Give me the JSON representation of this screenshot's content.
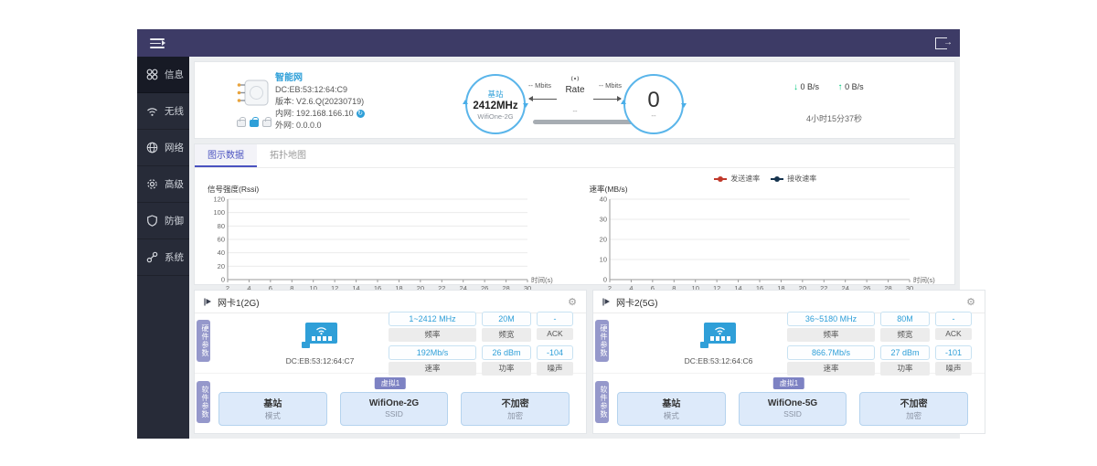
{
  "colors": {
    "topbar": "#3d3b66",
    "sidebar": "#272b38",
    "accent_blue": "#2e9fd8",
    "green": "#00c87d",
    "tab_active": "#4a52c0",
    "vtab_purple": "#9598cb",
    "badge_purple": "#7d82c3",
    "button_blue": "#ddeafa"
  },
  "icons": {
    "menu": "hamburger",
    "logout": "door-arrow",
    "gear": "⚙",
    "down_arrow": "↓",
    "up_arrow": "↑",
    "refresh": "↻"
  },
  "sidebar": {
    "items": [
      {
        "label": "信息",
        "icon": "grid-icon",
        "active": true
      },
      {
        "label": "无线",
        "icon": "wifi-icon",
        "active": false
      },
      {
        "label": "网络",
        "icon": "globe-icon",
        "active": false
      },
      {
        "label": "高级",
        "icon": "gear-icon",
        "active": false
      },
      {
        "label": "防御",
        "icon": "shield-icon",
        "active": false
      },
      {
        "label": "系统",
        "icon": "link-icon",
        "active": false
      }
    ]
  },
  "device": {
    "name": "智能网",
    "mac": "DC:EB:53:12:64:C9",
    "version_label": "版本:",
    "version": "V2.6.Q(20230719)",
    "lan_label": "内网:",
    "lan": "192.168.166.10",
    "wan_label": "外网:",
    "wan": "0.0.0.0"
  },
  "link": {
    "ap": {
      "role": "基站",
      "freq": "2412MHz",
      "ssid": "WifiOne-2G"
    },
    "client": {
      "value": "0",
      "sub": "--"
    },
    "tx_label": "-- Mbits",
    "rx_label": "-- Mbits",
    "center_label": "Rate",
    "center_sub": "--"
  },
  "traffic": {
    "down_arrow": "↓",
    "down": "0 B/s",
    "up_arrow": "↑",
    "up": "0 B/s",
    "uptime": "4小时15分37秒"
  },
  "tabs": [
    {
      "label": "图示数据",
      "active": true
    },
    {
      "label": "拓扑地图",
      "active": false
    }
  ],
  "chart_data": [
    {
      "type": "line",
      "title": "信号强度(Rssi)",
      "xlabel": "时间(s)",
      "ylabel": "信号强度(Rssi)",
      "xlim": [
        2,
        30
      ],
      "ylim": [
        0,
        120
      ],
      "xticks": [
        2,
        4,
        6,
        8,
        10,
        12,
        14,
        16,
        18,
        20,
        22,
        24,
        26,
        28,
        30
      ],
      "yticks": [
        0,
        20,
        40,
        60,
        80,
        100,
        120
      ],
      "grid": true,
      "legend_position": "none",
      "series": []
    },
    {
      "type": "line",
      "title": "速率(MB/s)",
      "xlabel": "时间(s)",
      "ylabel": "速率(MB/s)",
      "xlim": [
        2,
        30
      ],
      "ylim": [
        0,
        40
      ],
      "xticks": [
        2,
        4,
        6,
        8,
        10,
        12,
        14,
        16,
        18,
        20,
        22,
        24,
        26,
        28,
        30
      ],
      "yticks": [
        0,
        10,
        20,
        30,
        40
      ],
      "grid": true,
      "legend_position": "top-center",
      "legend": [
        {
          "name": "发送速率",
          "color": "#c0392b"
        },
        {
          "name": "接收速率",
          "color": "#16344f"
        }
      ],
      "series": [
        {
          "name": "发送速率",
          "x": [],
          "y": []
        },
        {
          "name": "接收速率",
          "x": [],
          "y": []
        }
      ]
    }
  ],
  "cards": [
    {
      "title": "网卡1(2G)",
      "mac": "DC:EB:53:12:64:C7",
      "hw_tab": "硬件参数",
      "sw_tab": "软件参数",
      "stats": [
        {
          "value": "1~2412 MHz",
          "label": "频率"
        },
        {
          "value": "20M",
          "label": "频宽"
        },
        {
          "value": "-",
          "label": "ACK"
        },
        {
          "value": "192Mb/s",
          "label": "速率"
        },
        {
          "value": "26 dBm",
          "label": "功率"
        },
        {
          "value": "-104",
          "label": "噪声"
        }
      ],
      "virtual_badge": "虚拟1",
      "buttons": [
        {
          "value": "基站",
          "label": "模式"
        },
        {
          "value": "WifiOne-2G",
          "label": "SSID"
        },
        {
          "value": "不加密",
          "label": "加密"
        }
      ]
    },
    {
      "title": "网卡2(5G)",
      "mac": "DC:EB:53:12:64:C6",
      "hw_tab": "硬件参数",
      "sw_tab": "软件参数",
      "stats": [
        {
          "value": "36~5180 MHz",
          "label": "频率"
        },
        {
          "value": "80M",
          "label": "频宽"
        },
        {
          "value": "-",
          "label": "ACK"
        },
        {
          "value": "866.7Mb/s",
          "label": "速率"
        },
        {
          "value": "27 dBm",
          "label": "功率"
        },
        {
          "value": "-101",
          "label": "噪声"
        }
      ],
      "virtual_badge": "虚拟1",
      "buttons": [
        {
          "value": "基站",
          "label": "模式"
        },
        {
          "value": "WifiOne-5G",
          "label": "SSID"
        },
        {
          "value": "不加密",
          "label": "加密"
        }
      ]
    }
  ]
}
